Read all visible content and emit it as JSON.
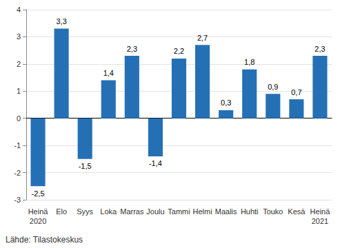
{
  "chart_data": {
    "type": "bar",
    "categories": [
      "Heinä\n2020",
      "Elo",
      "Syys",
      "Loka",
      "Marras",
      "Joulu",
      "Tammi",
      "Helmi",
      "Maalis",
      "Huhti",
      "Touko",
      "Kesä",
      "Heinä\n2021"
    ],
    "values": [
      -2.5,
      3.3,
      -1.5,
      1.4,
      2.3,
      -1.4,
      2.2,
      2.7,
      0.3,
      1.8,
      0.9,
      0.7,
      2.3
    ],
    "value_labels": [
      "-2,5",
      "3,3",
      "-1,5",
      "1,4",
      "2,3",
      "-1,4",
      "2,2",
      "2,7",
      "0,3",
      "1,8",
      "0,9",
      "0,7",
      "2,3"
    ],
    "data_labels": true,
    "color": "#2570b5",
    "ylim": [
      -3,
      4
    ],
    "yticks": [
      -3,
      -2,
      -1,
      0,
      1,
      2,
      3,
      4
    ],
    "grid": true,
    "annotations": [
      "Lähde: Tilastokeskus"
    ]
  }
}
